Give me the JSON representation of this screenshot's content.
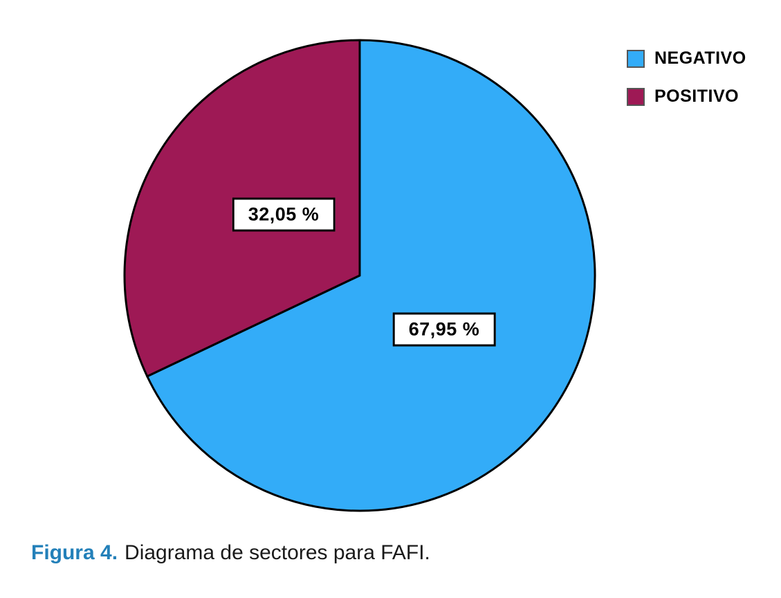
{
  "chart_data": {
    "type": "pie",
    "slices": [
      {
        "label": "NEGATIVO",
        "value": 67.95,
        "value_label": "67,95 %",
        "color": "#33ACF8"
      },
      {
        "label": "POSITIVO",
        "value": 32.05,
        "value_label": "32,05 %",
        "color": "#9E1955"
      }
    ],
    "start_angle_deg": 0,
    "direction": "clockwise",
    "legend_position": "top-right",
    "stroke_color": "#000000",
    "labels_in_boxes": true
  },
  "legend": {
    "items": [
      {
        "label": "NEGATIVO"
      },
      {
        "label": "POSITIVO"
      }
    ]
  },
  "caption": {
    "prefix": "Figura 4.",
    "text": "Diagrama de sectores para FAFI.",
    "prefix_color": "#2380B9"
  }
}
